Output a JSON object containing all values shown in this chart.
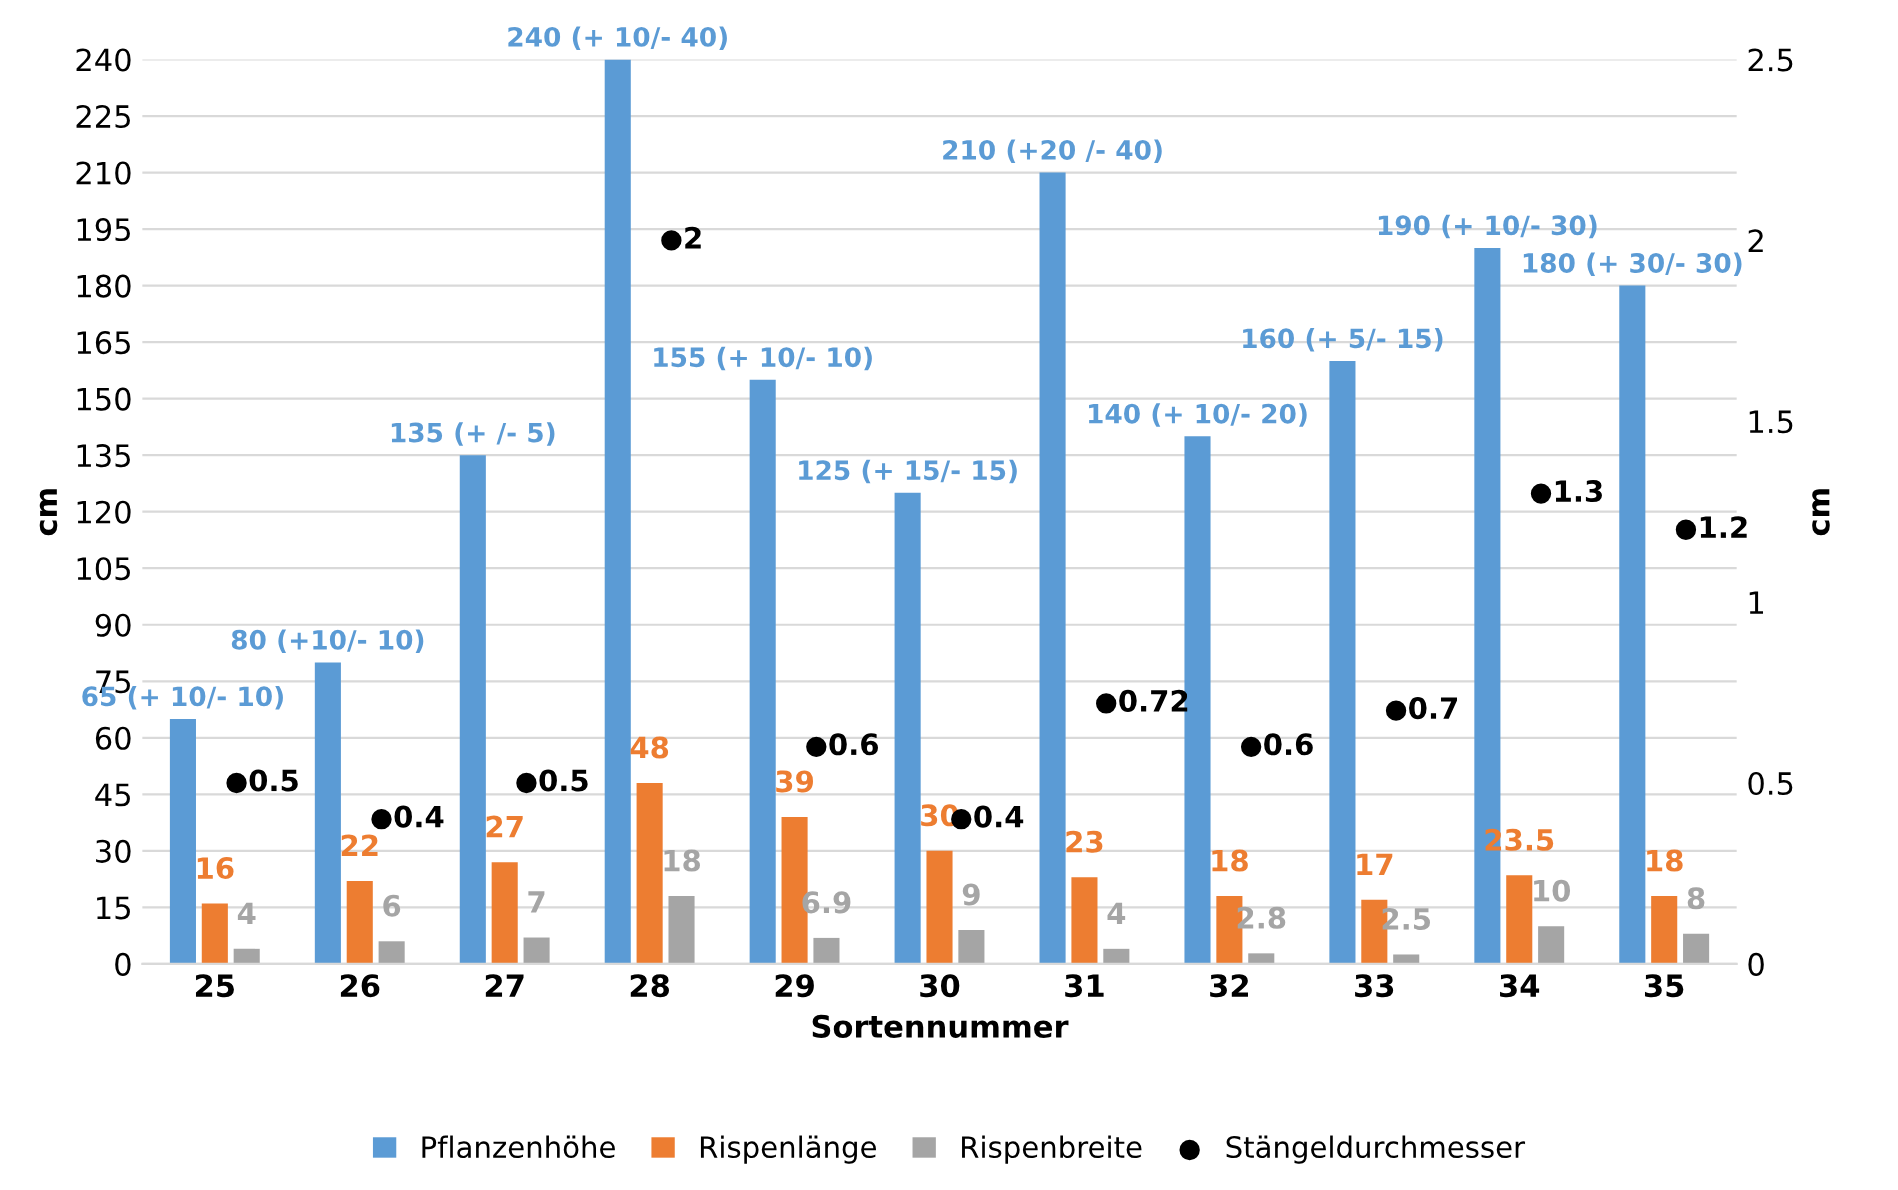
{
  "chart_data": {
    "type": "bar",
    "xlabel": "Sortennummer",
    "ylabel": "cm",
    "y2label": "cm",
    "categories": [
      "25",
      "26",
      "27",
      "28",
      "29",
      "30",
      "31",
      "32",
      "33",
      "34",
      "35"
    ],
    "series": [
      {
        "name": "Pflanzenhöhe",
        "color": "#5b9bd5",
        "values": [
          65,
          80,
          135,
          240,
          155,
          125,
          210,
          140,
          160,
          190,
          180
        ],
        "value_labels": [
          "65 (+ 10/- 10)",
          "80 (+10/- 10)",
          "135 (+ /- 5)",
          "240 (+ 10/- 40)",
          "155 (+ 10/- 10)",
          "125 (+ 15/- 15)",
          "210 (+20 /- 40)",
          "140 (+ 10/- 20)",
          "160 (+ 5/- 15)",
          "190 (+ 10/- 30)",
          "180 (+ 30/- 30)"
        ]
      },
      {
        "name": "Rispenlänge",
        "color": "#ed7d31",
        "values": [
          16,
          22,
          27,
          48,
          39,
          30,
          23,
          18,
          17,
          23.5,
          18
        ],
        "value_labels": [
          "16",
          "22",
          "27",
          "48",
          "39",
          "30",
          "23",
          "18",
          "17",
          "23.5",
          "18"
        ]
      },
      {
        "name": "Rispenbreite",
        "color": "#a5a5a5",
        "values": [
          4,
          6,
          7,
          18,
          6.9,
          9,
          4,
          2.8,
          2.5,
          10,
          8
        ],
        "value_labels": [
          "4",
          "6",
          "7",
          "18",
          "6.9",
          "9",
          "4",
          "2.8",
          "2.5",
          "10",
          "8"
        ]
      },
      {
        "name": "Stängeldurchmesser",
        "type": "scatter",
        "axis": "y2",
        "color": "#000000",
        "marker": "circle",
        "x": [
          "25",
          "26",
          "27",
          "28",
          "29",
          "30",
          "31",
          "32",
          "33",
          "34",
          "35"
        ],
        "values": [
          0.5,
          0.4,
          0.5,
          2,
          0.6,
          0.4,
          0.72,
          0.6,
          0.7,
          1.3,
          1.2
        ],
        "value_labels": [
          "0.5",
          "0.4",
          "0.5",
          "2",
          "0.6",
          "0.4",
          "0.72",
          "0.6",
          "0.7",
          "1.3",
          "1.2"
        ]
      }
    ],
    "ylim": [
      0,
      240
    ],
    "yticks": [
      0,
      15,
      30,
      45,
      60,
      75,
      90,
      105,
      120,
      135,
      150,
      165,
      180,
      195,
      210,
      225,
      240
    ],
    "y2lim": [
      0,
      2.5
    ],
    "y2ticks": [
      0,
      0.5,
      1,
      1.5,
      2,
      2.5
    ],
    "grid": "y",
    "legend": "bottom"
  }
}
